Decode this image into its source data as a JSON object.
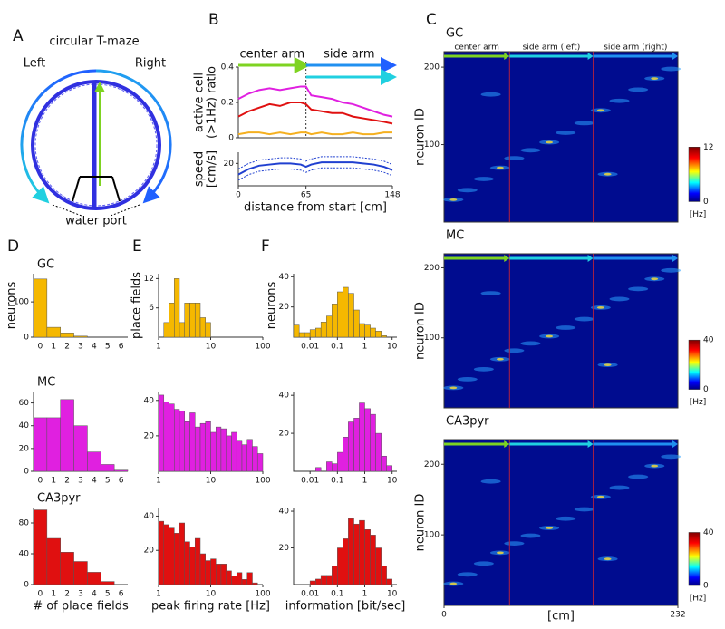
{
  "panels": [
    "A",
    "B",
    "C",
    "D",
    "E",
    "F"
  ],
  "panel_a": {
    "title": "circular T-maze",
    "left": "Left",
    "right": "Right",
    "port": "water port"
  },
  "chart_data": [
    {
      "type": "line",
      "x": [
        0,
        10,
        20,
        30,
        40,
        50,
        60,
        65,
        70,
        80,
        90,
        100,
        110,
        120,
        130,
        140,
        148
      ],
      "xlim": [
        0,
        148
      ],
      "ylim": [
        0,
        0.4
      ],
      "yticks": [
        0,
        0.2,
        0.4
      ],
      "ylabel": [
        "active cell",
        "(>1Hz) ratio"
      ],
      "boundary": 65,
      "annotations": [
        {
          "label": "center arm",
          "color": "#7ed321"
        },
        {
          "label": "side arm",
          "color": "#2090f0"
        }
      ],
      "series": [
        {
          "color": "#e020e0",
          "values": [
            0.22,
            0.25,
            0.27,
            0.28,
            0.27,
            0.28,
            0.29,
            0.29,
            0.24,
            0.23,
            0.22,
            0.2,
            0.19,
            0.17,
            0.15,
            0.13,
            0.12
          ]
        },
        {
          "color": "#e01010",
          "values": [
            0.12,
            0.15,
            0.17,
            0.19,
            0.18,
            0.2,
            0.2,
            0.19,
            0.16,
            0.15,
            0.14,
            0.14,
            0.12,
            0.11,
            0.1,
            0.09,
            0.08
          ]
        },
        {
          "color": "#f5b020",
          "values": [
            0.02,
            0.03,
            0.03,
            0.02,
            0.03,
            0.02,
            0.03,
            0.03,
            0.02,
            0.03,
            0.02,
            0.02,
            0.03,
            0.02,
            0.02,
            0.03,
            0.03
          ]
        }
      ]
    },
    {
      "type": "line",
      "x": [
        0,
        10,
        20,
        30,
        40,
        50,
        60,
        65,
        70,
        80,
        90,
        100,
        110,
        120,
        130,
        140,
        148
      ],
      "xlim": [
        0,
        148
      ],
      "xticks": [
        0,
        65,
        148
      ],
      "ylim": [
        0,
        30
      ],
      "yticks": [
        20
      ],
      "ylabel": [
        "speed",
        "[cm/s]"
      ],
      "xlabel": "distance from start [cm]",
      "series": [
        {
          "color": "#2040d0",
          "style": "dotted",
          "values": [
            15,
            20,
            23,
            24,
            25,
            25,
            24,
            22,
            24,
            26,
            26,
            26,
            26,
            25,
            24,
            22,
            19
          ]
        },
        {
          "color": "#2040d0",
          "style": "solid",
          "values": [
            10,
            15,
            18,
            19,
            20,
            20,
            19,
            17,
            19,
            21,
            21,
            21,
            21,
            20,
            19,
            17,
            14
          ]
        },
        {
          "color": "#2040d0",
          "style": "dotted",
          "values": [
            5,
            10,
            13,
            14,
            15,
            15,
            14,
            12,
            14,
            16,
            16,
            16,
            16,
            15,
            14,
            12,
            9
          ]
        }
      ]
    },
    {
      "type": "bar",
      "title": "GC",
      "categories": [
        0,
        1,
        2,
        3,
        4,
        5,
        6
      ],
      "values": [
        165,
        28,
        12,
        3,
        0,
        0,
        0
      ],
      "ylim": [
        0,
        180
      ],
      "yticks": [
        0,
        100
      ],
      "color": "#f5b800",
      "ylabel": "neurons"
    },
    {
      "type": "bar",
      "title": "MC",
      "categories": [
        0,
        1,
        2,
        3,
        4,
        5,
        6
      ],
      "values": [
        47,
        47,
        63,
        40,
        17,
        6,
        1
      ],
      "ylim": [
        0,
        70
      ],
      "yticks": [
        0,
        20,
        40,
        60
      ],
      "color": "#e020e0"
    },
    {
      "type": "bar",
      "title": "CA3pyr",
      "categories": [
        0,
        1,
        2,
        3,
        4,
        5,
        6
      ],
      "values": [
        97,
        60,
        42,
        30,
        16,
        4,
        0
      ],
      "ylim": [
        0,
        100
      ],
      "yticks": [
        0,
        40,
        80
      ],
      "color": "#e01010",
      "xlabel": "# of place fields"
    },
    {
      "type": "histogram",
      "bins": [
        1,
        1.26,
        1.58,
        2,
        2.51,
        3.16,
        3.98,
        5.01,
        6.31,
        7.94,
        10,
        12.6,
        15.8,
        20,
        25.1,
        31.6,
        39.8,
        50.1,
        63.1,
        79.4,
        100
      ],
      "values": [
        0,
        3,
        7,
        12,
        3,
        7,
        7,
        7,
        4,
        3,
        0,
        0,
        0,
        0,
        0,
        0,
        0,
        0,
        0,
        0
      ],
      "xscale": "log",
      "xlim": [
        1,
        100
      ],
      "xticks": [
        1,
        10,
        100
      ],
      "ylim": [
        0,
        13
      ],
      "yticks": [
        6,
        12
      ],
      "color": "#f5b800",
      "ylabel": "place fields"
    },
    {
      "type": "histogram",
      "bins": [
        1,
        1.26,
        1.58,
        2,
        2.51,
        3.16,
        3.98,
        5.01,
        6.31,
        7.94,
        10,
        12.6,
        15.8,
        20,
        25.1,
        31.6,
        39.8,
        50.1,
        63.1,
        79.4,
        100
      ],
      "values": [
        43,
        39,
        38,
        35,
        34,
        28,
        33,
        25,
        27,
        28,
        22,
        25,
        24,
        20,
        22,
        17,
        15,
        18,
        14,
        10
      ],
      "xscale": "log",
      "xlim": [
        1,
        100
      ],
      "xticks": [
        1,
        10,
        100
      ],
      "ylim": [
        0,
        45
      ],
      "yticks": [
        20,
        40
      ],
      "color": "#e020e0"
    },
    {
      "type": "histogram",
      "bins": [
        1,
        1.26,
        1.58,
        2,
        2.51,
        3.16,
        3.98,
        5.01,
        6.31,
        7.94,
        10,
        12.6,
        15.8,
        20,
        25.1,
        31.6,
        39.8,
        50.1,
        63.1,
        79.4,
        100
      ],
      "values": [
        37,
        35,
        33,
        30,
        36,
        25,
        22,
        27,
        18,
        14,
        15,
        12,
        12,
        8,
        5,
        7,
        3,
        7,
        1,
        0
      ],
      "xscale": "log",
      "xlim": [
        1,
        100
      ],
      "xticks": [
        1,
        10,
        100
      ],
      "ylim": [
        0,
        45
      ],
      "yticks": [
        20,
        40
      ],
      "color": "#e01010",
      "xlabel": "peak firing rate [Hz]"
    },
    {
      "type": "histogram",
      "bins": [
        0.0025,
        0.004,
        0.0063,
        0.01,
        0.016,
        0.025,
        0.04,
        0.063,
        0.1,
        0.16,
        0.25,
        0.4,
        0.63,
        1,
        1.6,
        2.5,
        4,
        6.3,
        10
      ],
      "values": [
        8,
        3,
        3,
        5,
        6,
        10,
        14,
        22,
        30,
        33,
        29,
        18,
        9,
        8,
        6,
        4,
        1,
        0
      ],
      "xscale": "log",
      "xlim": [
        0.0025,
        15
      ],
      "xticks": [
        0.01,
        0.1,
        1,
        10
      ],
      "ylim": [
        0,
        42
      ],
      "yticks": [
        20,
        40
      ],
      "color": "#f5b800",
      "ylabel": "neurons"
    },
    {
      "type": "histogram",
      "bins": [
        0.0025,
        0.004,
        0.0063,
        0.01,
        0.016,
        0.025,
        0.04,
        0.063,
        0.1,
        0.16,
        0.25,
        0.4,
        0.63,
        1,
        1.6,
        2.5,
        4,
        6.3,
        10
      ],
      "values": [
        0,
        0,
        0,
        0,
        2,
        0,
        5,
        4,
        10,
        18,
        26,
        28,
        36,
        33,
        30,
        20,
        8,
        3
      ],
      "xscale": "log",
      "xlim": [
        0.0025,
        15
      ],
      "xticks": [
        0.01,
        0.1,
        1,
        10
      ],
      "ylim": [
        0,
        42
      ],
      "yticks": [
        20,
        40
      ],
      "color": "#e020e0"
    },
    {
      "type": "histogram",
      "bins": [
        0.0025,
        0.004,
        0.0063,
        0.01,
        0.016,
        0.025,
        0.04,
        0.063,
        0.1,
        0.16,
        0.25,
        0.4,
        0.63,
        1,
        1.6,
        2.5,
        4,
        6.3,
        10
      ],
      "values": [
        0,
        0,
        0,
        2,
        3,
        5,
        5,
        10,
        20,
        25,
        36,
        33,
        35,
        30,
        27,
        20,
        10,
        3
      ],
      "xscale": "log",
      "xlim": [
        0.0025,
        15
      ],
      "xticks": [
        0.01,
        0.1,
        1,
        10
      ],
      "ylim": [
        0,
        42
      ],
      "yticks": [
        20,
        40
      ],
      "color": "#e01010",
      "xlabel": "information [bit/sec]"
    },
    {
      "type": "heatmap",
      "title": "GC",
      "ylabel": "neuron ID",
      "xlim": [
        0,
        232
      ],
      "ylim": [
        0,
        220
      ],
      "yticks": [
        100,
        200
      ],
      "boundaries": [
        65,
        148
      ],
      "arm_colors": [
        "#7ed321",
        "#20d0e0",
        "#2090f0"
      ],
      "arm_labels": [
        "center arm",
        "side arm (left)",
        "side arm (right)"
      ],
      "colorbar": {
        "lim": [
          0,
          12
        ],
        "ticks": [
          0,
          12
        ],
        "label": "[Hz]"
      }
    },
    {
      "type": "heatmap",
      "title": "MC",
      "ylabel": "neuron ID",
      "xlim": [
        0,
        232
      ],
      "ylim": [
        0,
        220
      ],
      "yticks": [
        100,
        200
      ],
      "boundaries": [
        65,
        148
      ],
      "arm_colors": [
        "#7ed321",
        "#20d0e0",
        "#2090f0"
      ],
      "colorbar": {
        "lim": [
          0,
          40
        ],
        "ticks": [
          0,
          40
        ],
        "label": "[Hz]"
      }
    },
    {
      "type": "heatmap",
      "title": "CA3pyr",
      "ylabel": "neuron ID",
      "xlim": [
        0,
        232
      ],
      "ylim": [
        0,
        235
      ],
      "yticks": [
        100,
        200
      ],
      "xticks": [
        0,
        232
      ],
      "xlabel": "[cm]",
      "boundaries": [
        65,
        148
      ],
      "arm_colors": [
        "#7ed321",
        "#20d0e0",
        "#2090f0"
      ],
      "colorbar": {
        "lim": [
          0,
          40
        ],
        "ticks": [
          0,
          40
        ],
        "label": "[Hz]"
      }
    }
  ]
}
